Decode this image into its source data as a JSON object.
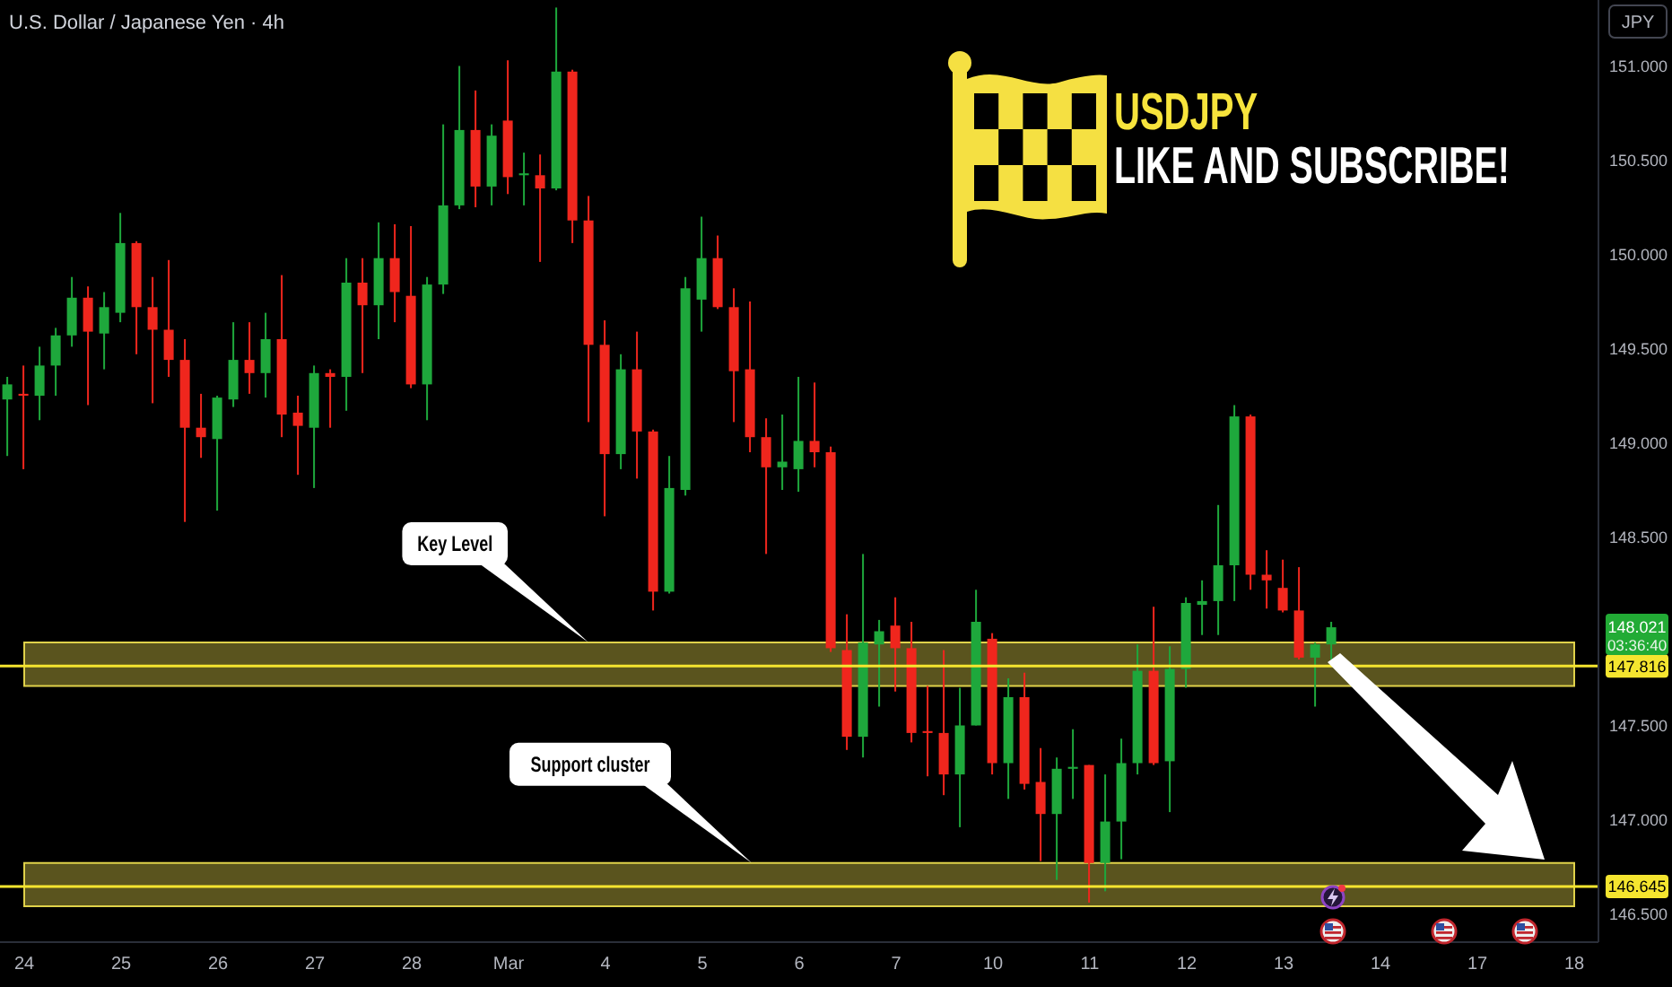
{
  "chart_data": {
    "type": "candlestick",
    "title": "USDJPY",
    "subtitle": "LIKE AND SUBSCRIBE!",
    "categories": [
      null,
      "24",
      null,
      null,
      null,
      null,
      null,
      "25",
      null,
      null,
      null,
      null,
      null,
      "26",
      null,
      null,
      null,
      null,
      null,
      "27",
      null,
      null,
      null,
      null,
      null,
      "28",
      null,
      null,
      null,
      null,
      null,
      "Mar",
      null,
      null,
      null,
      null,
      null,
      "4",
      null,
      null,
      null,
      null,
      null,
      "5",
      null,
      null,
      null,
      null,
      null,
      "6",
      null,
      null,
      null,
      null,
      null,
      "7",
      null,
      null,
      null,
      null,
      null,
      "10",
      null,
      null,
      null,
      null,
      null,
      "11",
      null,
      null,
      null,
      null,
      null,
      "12",
      null,
      null,
      null,
      null,
      null,
      "13",
      null,
      null,
      null,
      null,
      null,
      "14",
      null,
      null,
      null,
      null,
      null,
      "17",
      null,
      null,
      null,
      null,
      null,
      "18",
      null
    ],
    "ohlc": [
      [
        149.23,
        149.35,
        148.93,
        149.31
      ],
      [
        149.26,
        149.41,
        148.86,
        149.25
      ],
      [
        149.25,
        149.51,
        149.12,
        149.41
      ],
      [
        149.41,
        149.61,
        149.25,
        149.57
      ],
      [
        149.57,
        149.88,
        149.51,
        149.77
      ],
      [
        149.77,
        149.83,
        149.2,
        149.59
      ],
      [
        149.58,
        149.8,
        149.39,
        149.72
      ],
      [
        149.69,
        150.22,
        149.64,
        150.06
      ],
      [
        150.06,
        150.07,
        149.47,
        149.72
      ],
      [
        149.72,
        149.88,
        149.21,
        149.6
      ],
      [
        149.6,
        149.97,
        149.35,
        149.44
      ],
      [
        149.44,
        149.55,
        148.58,
        149.08
      ],
      [
        149.08,
        149.26,
        148.92,
        149.03
      ],
      [
        149.02,
        149.25,
        148.64,
        149.24
      ],
      [
        149.23,
        149.64,
        149.19,
        149.44
      ],
      [
        149.44,
        149.64,
        149.26,
        149.37
      ],
      [
        149.37,
        149.69,
        149.24,
        149.55
      ],
      [
        149.55,
        149.89,
        149.03,
        149.15
      ],
      [
        149.16,
        149.25,
        148.83,
        149.09
      ],
      [
        149.08,
        149.41,
        148.76,
        149.37
      ],
      [
        149.37,
        149.39,
        149.08,
        149.35
      ],
      [
        149.35,
        149.98,
        149.17,
        149.85
      ],
      [
        149.85,
        149.98,
        149.37,
        149.73
      ],
      [
        149.73,
        150.17,
        149.55,
        149.98
      ],
      [
        149.98,
        150.16,
        149.64,
        149.8
      ],
      [
        149.78,
        150.15,
        149.29,
        149.31
      ],
      [
        149.31,
        149.88,
        149.12,
        149.84
      ],
      [
        149.84,
        150.69,
        149.79,
        150.26
      ],
      [
        150.26,
        151.0,
        150.24,
        150.66
      ],
      [
        150.66,
        150.87,
        150.25,
        150.36
      ],
      [
        150.36,
        150.69,
        150.26,
        150.63
      ],
      [
        150.71,
        151.03,
        150.32,
        150.41
      ],
      [
        150.42,
        150.54,
        150.26,
        150.43
      ],
      [
        150.42,
        150.53,
        149.96,
        150.35
      ],
      [
        150.35,
        151.31,
        150.34,
        150.97
      ],
      [
        150.97,
        150.98,
        150.06,
        150.18
      ],
      [
        150.18,
        150.31,
        149.11,
        149.52
      ],
      [
        149.52,
        149.65,
        148.61,
        148.94
      ],
      [
        148.94,
        149.47,
        148.86,
        149.39
      ],
      [
        149.39,
        149.59,
        148.81,
        149.06
      ],
      [
        149.06,
        149.07,
        148.11,
        148.21
      ],
      [
        148.21,
        148.93,
        148.2,
        148.76
      ],
      [
        148.75,
        149.88,
        148.72,
        149.82
      ],
      [
        149.76,
        150.2,
        149.59,
        149.98
      ],
      [
        149.98,
        150.1,
        149.71,
        149.72
      ],
      [
        149.72,
        149.82,
        149.11,
        149.38
      ],
      [
        149.39,
        149.75,
        148.95,
        149.03
      ],
      [
        149.03,
        149.13,
        148.41,
        148.87
      ],
      [
        148.87,
        149.15,
        148.75,
        148.9
      ],
      [
        148.86,
        149.35,
        148.74,
        149.01
      ],
      [
        149.01,
        149.32,
        148.87,
        148.95
      ],
      [
        148.95,
        148.98,
        147.89,
        147.91
      ],
      [
        147.9,
        148.09,
        147.37,
        147.44
      ],
      [
        147.44,
        148.41,
        147.33,
        147.94
      ],
      [
        147.93,
        148.06,
        147.6,
        148.0
      ],
      [
        148.03,
        148.18,
        147.68,
        147.91
      ],
      [
        147.91,
        148.05,
        147.41,
        147.46
      ],
      [
        147.47,
        147.71,
        147.23,
        147.46
      ],
      [
        147.46,
        147.9,
        147.13,
        147.24
      ],
      [
        147.24,
        147.7,
        146.96,
        147.5
      ],
      [
        147.5,
        148.22,
        147.5,
        148.05
      ],
      [
        147.96,
        147.99,
        147.24,
        147.3
      ],
      [
        147.3,
        147.75,
        147.11,
        147.65
      ],
      [
        147.65,
        147.78,
        147.16,
        147.19
      ],
      [
        147.2,
        147.38,
        146.78,
        147.03
      ],
      [
        147.03,
        147.33,
        146.68,
        147.27
      ],
      [
        147.27,
        147.48,
        147.11,
        147.28
      ],
      [
        147.29,
        147.29,
        146.56,
        146.77
      ],
      [
        146.77,
        147.24,
        146.62,
        146.99
      ],
      [
        146.99,
        147.43,
        146.79,
        147.3
      ],
      [
        147.3,
        147.93,
        147.24,
        147.79
      ],
      [
        147.79,
        148.13,
        147.29,
        147.3
      ],
      [
        147.31,
        147.92,
        147.04,
        147.8
      ],
      [
        147.8,
        148.18,
        147.7,
        148.15
      ],
      [
        148.14,
        148.27,
        147.98,
        148.16
      ],
      [
        148.16,
        148.67,
        147.98,
        148.35
      ],
      [
        148.35,
        149.2,
        148.16,
        149.14
      ],
      [
        149.14,
        149.15,
        148.22,
        148.3
      ],
      [
        148.3,
        148.43,
        148.12,
        148.27
      ],
      [
        148.23,
        148.38,
        148.1,
        148.11
      ],
      [
        148.11,
        148.34,
        147.85,
        147.86
      ],
      [
        147.86,
        147.94,
        147.6,
        147.93
      ],
      [
        147.93,
        148.05,
        147.85,
        148.021
      ],
      null,
      null,
      null,
      null,
      null,
      null,
      null,
      null,
      null,
      null,
      null,
      null,
      null,
      null,
      null,
      null
    ],
    "colors": [
      "#1ea83c",
      "#f0261d",
      "#1ea83c",
      "#1ea83c",
      "#1ea83c",
      "#f0261d",
      "#1ea83c",
      "#1ea83c",
      "#f0261d",
      "#f0261d",
      "#f0261d",
      "#f0261d",
      "#f0261d",
      "#1ea83c",
      "#1ea83c",
      "#f0261d",
      "#1ea83c",
      "#f0261d",
      "#f0261d",
      "#1ea83c",
      "#f0261d",
      "#1ea83c",
      "#f0261d",
      "#1ea83c",
      "#f0261d",
      "#f0261d",
      "#1ea83c",
      "#1ea83c",
      "#1ea83c",
      "#f0261d",
      "#1ea83c",
      "#f0261d",
      "#1ea83c",
      "#f0261d",
      "#1ea83c",
      "#f0261d",
      "#f0261d",
      "#f0261d",
      "#1ea83c",
      "#f0261d",
      "#f0261d",
      "#1ea83c",
      "#1ea83c",
      "#1ea83c",
      "#f0261d",
      "#f0261d",
      "#f0261d",
      "#f0261d",
      "#1ea83c",
      "#1ea83c",
      "#f0261d",
      "#f0261d",
      "#f0261d",
      "#1ea83c",
      "#1ea83c",
      "#f0261d",
      "#f0261d",
      "#f0261d",
      "#f0261d",
      "#1ea83c",
      "#1ea83c",
      "#f0261d",
      "#1ea83c",
      "#f0261d",
      "#f0261d",
      "#1ea83c",
      "#1ea83c",
      "#f0261d",
      "#1ea83c",
      "#1ea83c",
      "#1ea83c",
      "#f0261d",
      "#1ea83c",
      "#1ea83c",
      "#1ea83c",
      "#1ea83c",
      "#1ea83c",
      "#f0261d",
      "#f0261d",
      "#f0261d",
      "#f0261d",
      "#1ea83c",
      "#1ea83c",
      null,
      null,
      null,
      null,
      null,
      null,
      null,
      null,
      null,
      null,
      null,
      null,
      null,
      null,
      null,
      null
    ],
    "ylim": [
      146.35,
      151.35
    ],
    "yticks": [
      {
        "value": 146.5,
        "label": "146.500"
      },
      {
        "value": 147,
        "label": "147.000"
      },
      {
        "value": 147.5,
        "label": "147.500"
      },
      {
        "value": 148.5,
        "label": "148.500"
      },
      {
        "value": 149,
        "label": "149.000"
      },
      {
        "value": 149.5,
        "label": "149.500"
      },
      {
        "value": 150,
        "label": "150.000"
      },
      {
        "value": 150.5,
        "label": "150.500"
      },
      {
        "value": 151,
        "label": "151.000"
      }
    ],
    "bands": [
      {
        "axis": "y",
        "from": 147.71,
        "to": 147.94,
        "color": "#e0d24a"
      },
      {
        "axis": "y",
        "from": 146.54,
        "to": 146.77,
        "color": "#e0d24a"
      }
    ],
    "ref_lines": [
      {
        "axis": "y",
        "value": 147.816,
        "label": "147.816",
        "color": "#f5e52f"
      },
      {
        "axis": "y",
        "value": 146.645,
        "label": "146.645",
        "color": "#f5e52f"
      }
    ],
    "annotations": [
      "U.S. Dollar / Japanese Yen · 4h",
      "JPY",
      "148.021",
      "03:36:40",
      "Key Level",
      "Support cluster"
    ]
  }
}
